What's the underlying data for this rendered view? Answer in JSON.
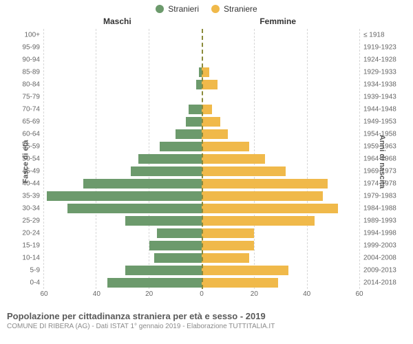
{
  "legend": {
    "male": {
      "label": "Stranieri",
      "color": "#6c9a6c"
    },
    "female": {
      "label": "Straniere",
      "color": "#f0b94a"
    }
  },
  "headers": {
    "left": "Maschi",
    "right": "Femmine"
  },
  "axis_titles": {
    "left": "Fasce di età",
    "right": "Anni di nascita"
  },
  "footer": {
    "title": "Popolazione per cittadinanza straniera per età e sesso - 2019",
    "subtitle": "COMUNE DI RIBERA (AG) - Dati ISTAT 1° gennaio 2019 - Elaborazione TUTTITALIA.IT"
  },
  "chart": {
    "type": "population-pyramid",
    "x_max": 60,
    "x_ticks": [
      60,
      40,
      20,
      0,
      20,
      40,
      60
    ],
    "background_color": "#ffffff",
    "grid_color": "#d7d7d7",
    "centerline_color": "#8a8a3a",
    "bar_gap_pct": 20,
    "label_fontsize": 10,
    "header_fontsize": 12,
    "age_labels": [
      "0-4",
      "5-9",
      "10-14",
      "15-19",
      "20-24",
      "25-29",
      "30-34",
      "35-39",
      "40-44",
      "45-49",
      "50-54",
      "55-59",
      "60-64",
      "65-69",
      "70-74",
      "75-79",
      "80-84",
      "85-89",
      "90-94",
      "95-99",
      "100+"
    ],
    "birth_labels": [
      "2014-2018",
      "2009-2013",
      "2004-2008",
      "1999-2003",
      "1994-1998",
      "1989-1993",
      "1984-1988",
      "1979-1983",
      "1974-1978",
      "1969-1973",
      "1964-1968",
      "1959-1963",
      "1954-1958",
      "1949-1953",
      "1944-1948",
      "1939-1943",
      "1934-1938",
      "1929-1933",
      "1924-1928",
      "1919-1923",
      "≤ 1918"
    ],
    "male_values": [
      36,
      29,
      18,
      20,
      17,
      29,
      51,
      59,
      45,
      27,
      24,
      16,
      10,
      6,
      5,
      0,
      2,
      1,
      0,
      0,
      0
    ],
    "female_values": [
      29,
      33,
      18,
      20,
      20,
      43,
      52,
      46,
      48,
      32,
      24,
      18,
      10,
      7,
      4,
      0,
      6,
      3,
      0,
      0,
      0
    ]
  }
}
